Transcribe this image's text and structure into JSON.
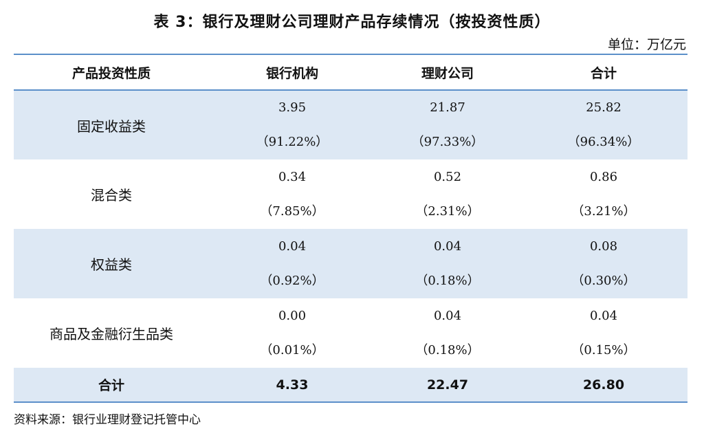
{
  "title": "表 3：银行及理财公司理财产品存续情况（按投资性质）",
  "unit": "单位：万亿元",
  "headers": [
    "产品投资性质",
    "银行机构",
    "理财公司",
    "合计"
  ],
  "rows": [
    {
      "category": "固定收益类",
      "bank": "3.95",
      "bank_pct": "（91.22%）",
      "wealth": "21.87",
      "wealth_pct": "（97.33%）",
      "total": "25.82",
      "total_pct": "（96.34%）"
    },
    {
      "category": "混合类",
      "bank": "0.34",
      "bank_pct": "（7.85%）",
      "wealth": "0.52",
      "wealth_pct": "（2.31%）",
      "total": "0.86",
      "total_pct": "（3.21%）"
    },
    {
      "category": "权益类",
      "bank": "0.04",
      "bank_pct": "（0.92%）",
      "wealth": "0.04",
      "wealth_pct": "（0.18%）",
      "total": "0.08",
      "total_pct": "（0.30%）"
    },
    {
      "category": "商品及金融衍生品类",
      "bank": "0.00",
      "bank_pct": "（0.01%）",
      "wealth": "0.04",
      "wealth_pct": "（0.18%）",
      "total": "0.04",
      "total_pct": "（0.15%）"
    }
  ],
  "total_row": {
    "category": "合计",
    "bank": "4.33",
    "wealth": "22.47",
    "total": "26.80"
  },
  "source": "资料来源：银行业理财登记托管中心"
}
